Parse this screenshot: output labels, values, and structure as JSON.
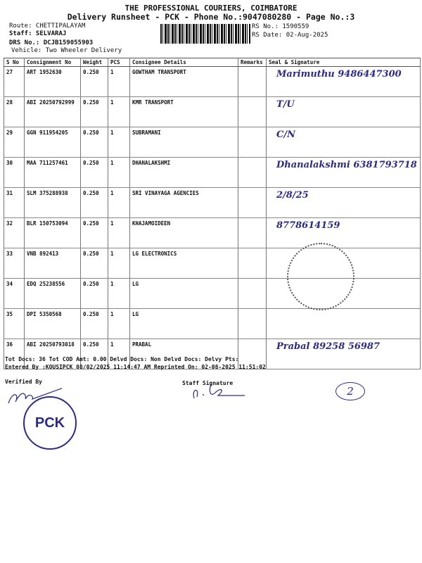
{
  "header": {
    "company": "THE PROFESSIONAL COURIERS, COIMBATORE",
    "title": "Delivery Runsheet - PCK - Phone No.:9047080280 - Page No.:3",
    "route": "Route: CHETTIPALAYAM",
    "staff": "Staff: SELVARAJ",
    "drs": "DRS No.: DCJB159055903",
    "vehicle": "Vehicle: Two Wheeler Delivery",
    "rs_no": "RS No.: 1590559",
    "rs_date": "RS Date: 02-Aug-2025"
  },
  "table": {
    "columns": [
      "S No",
      "Consignment No",
      "Weight",
      "PCS",
      "Consignee Details",
      "Remarks",
      "Seal & Signature"
    ],
    "rows": [
      {
        "sno": "27",
        "cons": "ART 1952630",
        "weight": "0.250",
        "pcs": "1",
        "consignee": "GOWTHAM TRANSPORT",
        "sign": "Marimuthu 9486447300"
      },
      {
        "sno": "28",
        "cons": "ABI 20250792999",
        "weight": "0.250",
        "pcs": "1",
        "consignee": "KMR TRANSPORT",
        "sign": "T/U"
      },
      {
        "sno": "29",
        "cons": "GGN 911954205",
        "weight": "0.250",
        "pcs": "1",
        "consignee": "SUBRAMANI",
        "sign": "C/N"
      },
      {
        "sno": "30",
        "cons": "MAA 711257461",
        "weight": "0.250",
        "pcs": "1",
        "consignee": "DHANALAKSHMI",
        "sign": "Dhanalakshmi 6381793718"
      },
      {
        "sno": "31",
        "cons": "SLM 375288938",
        "weight": "0.250",
        "pcs": "1",
        "consignee": "SRI VINAYAGA AGENCIES",
        "sign": "2/8/25"
      },
      {
        "sno": "32",
        "cons": "BLR 150753094",
        "weight": "0.250",
        "pcs": "1",
        "consignee": "KHAJAMOIDEEN",
        "sign": "8778614159"
      },
      {
        "sno": "33",
        "cons": "VNB 892413",
        "weight": "0.250",
        "pcs": "1",
        "consignee": "LG ELECTRONICS",
        "sign": ""
      },
      {
        "sno": "34",
        "cons": "EDQ 25238556",
        "weight": "0.250",
        "pcs": "1",
        "consignee": "LG",
        "sign": ""
      },
      {
        "sno": "35",
        "cons": "DPI 5350568",
        "weight": "0.250",
        "pcs": "1",
        "consignee": "LG",
        "sign": ""
      },
      {
        "sno": "36",
        "cons": "ABI 20250793018",
        "weight": "0.250",
        "pcs": "1",
        "consignee": "PRABAL",
        "sign": "Prabal 89258 56987"
      }
    ]
  },
  "footer": {
    "totals": "Tot Docs:  36    Tot COD Amt:     0.00     Delvd Docs:     Non Delvd Docs:     Delvy Pts:",
    "entered": "Entered By :KOUSIPCK 08/02/2025 11:14:47 AM     Reprinted On: 02-08-2025 11:51:02",
    "verified": "Verified By",
    "staff_signature": "Staff Signature",
    "stamp": "PCK",
    "page_mark": "2"
  },
  "colors": {
    "ink": "#2a2a8c"
  }
}
